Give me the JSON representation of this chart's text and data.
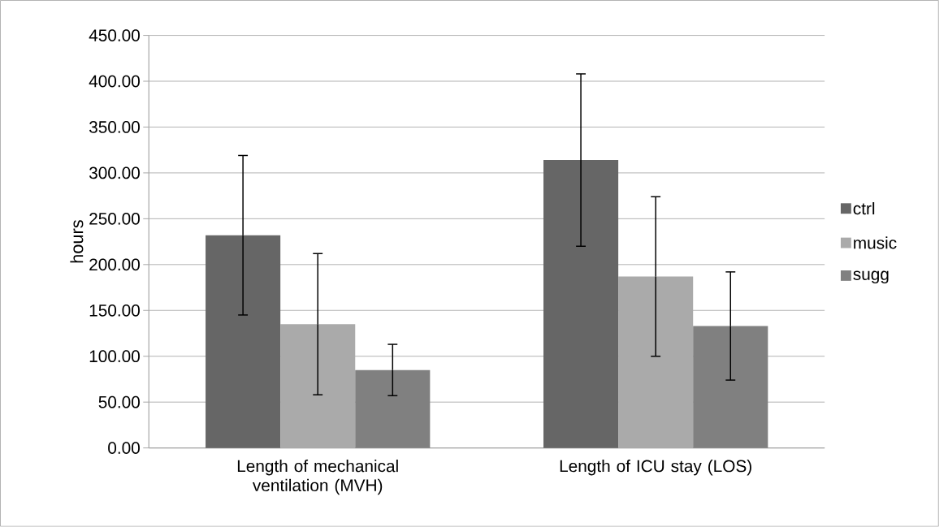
{
  "chart_data": {
    "type": "bar",
    "ylabel": "hours",
    "categories": [
      "Length of mechanical ventilation (MVH)",
      "Length of ICU stay (LOS)"
    ],
    "series": [
      {
        "name": "ctrl",
        "color": "#666666",
        "values": [
          232,
          314
        ],
        "errors": [
          87,
          94
        ]
      },
      {
        "name": "music",
        "color": "#aaaaaa",
        "values": [
          135,
          187
        ],
        "errors": [
          77,
          87
        ]
      },
      {
        "name": "sugg",
        "color": "#808080",
        "values": [
          85,
          133
        ],
        "errors": [
          28,
          59
        ]
      }
    ],
    "ylim": [
      0,
      450
    ],
    "yticks": [
      {
        "value": 0,
        "label": "0.00"
      },
      {
        "value": 50,
        "label": "50.00"
      },
      {
        "value": 100,
        "label": "100.00"
      },
      {
        "value": 150,
        "label": "150.00"
      },
      {
        "value": 200,
        "label": "200.00"
      },
      {
        "value": 250,
        "label": "250.00"
      },
      {
        "value": 300,
        "label": "300.00"
      },
      {
        "value": 350,
        "label": "350.00"
      },
      {
        "value": 400,
        "label": "400.00"
      },
      {
        "value": 450,
        "label": "450.00"
      }
    ],
    "grid": "y",
    "legend": "right"
  }
}
